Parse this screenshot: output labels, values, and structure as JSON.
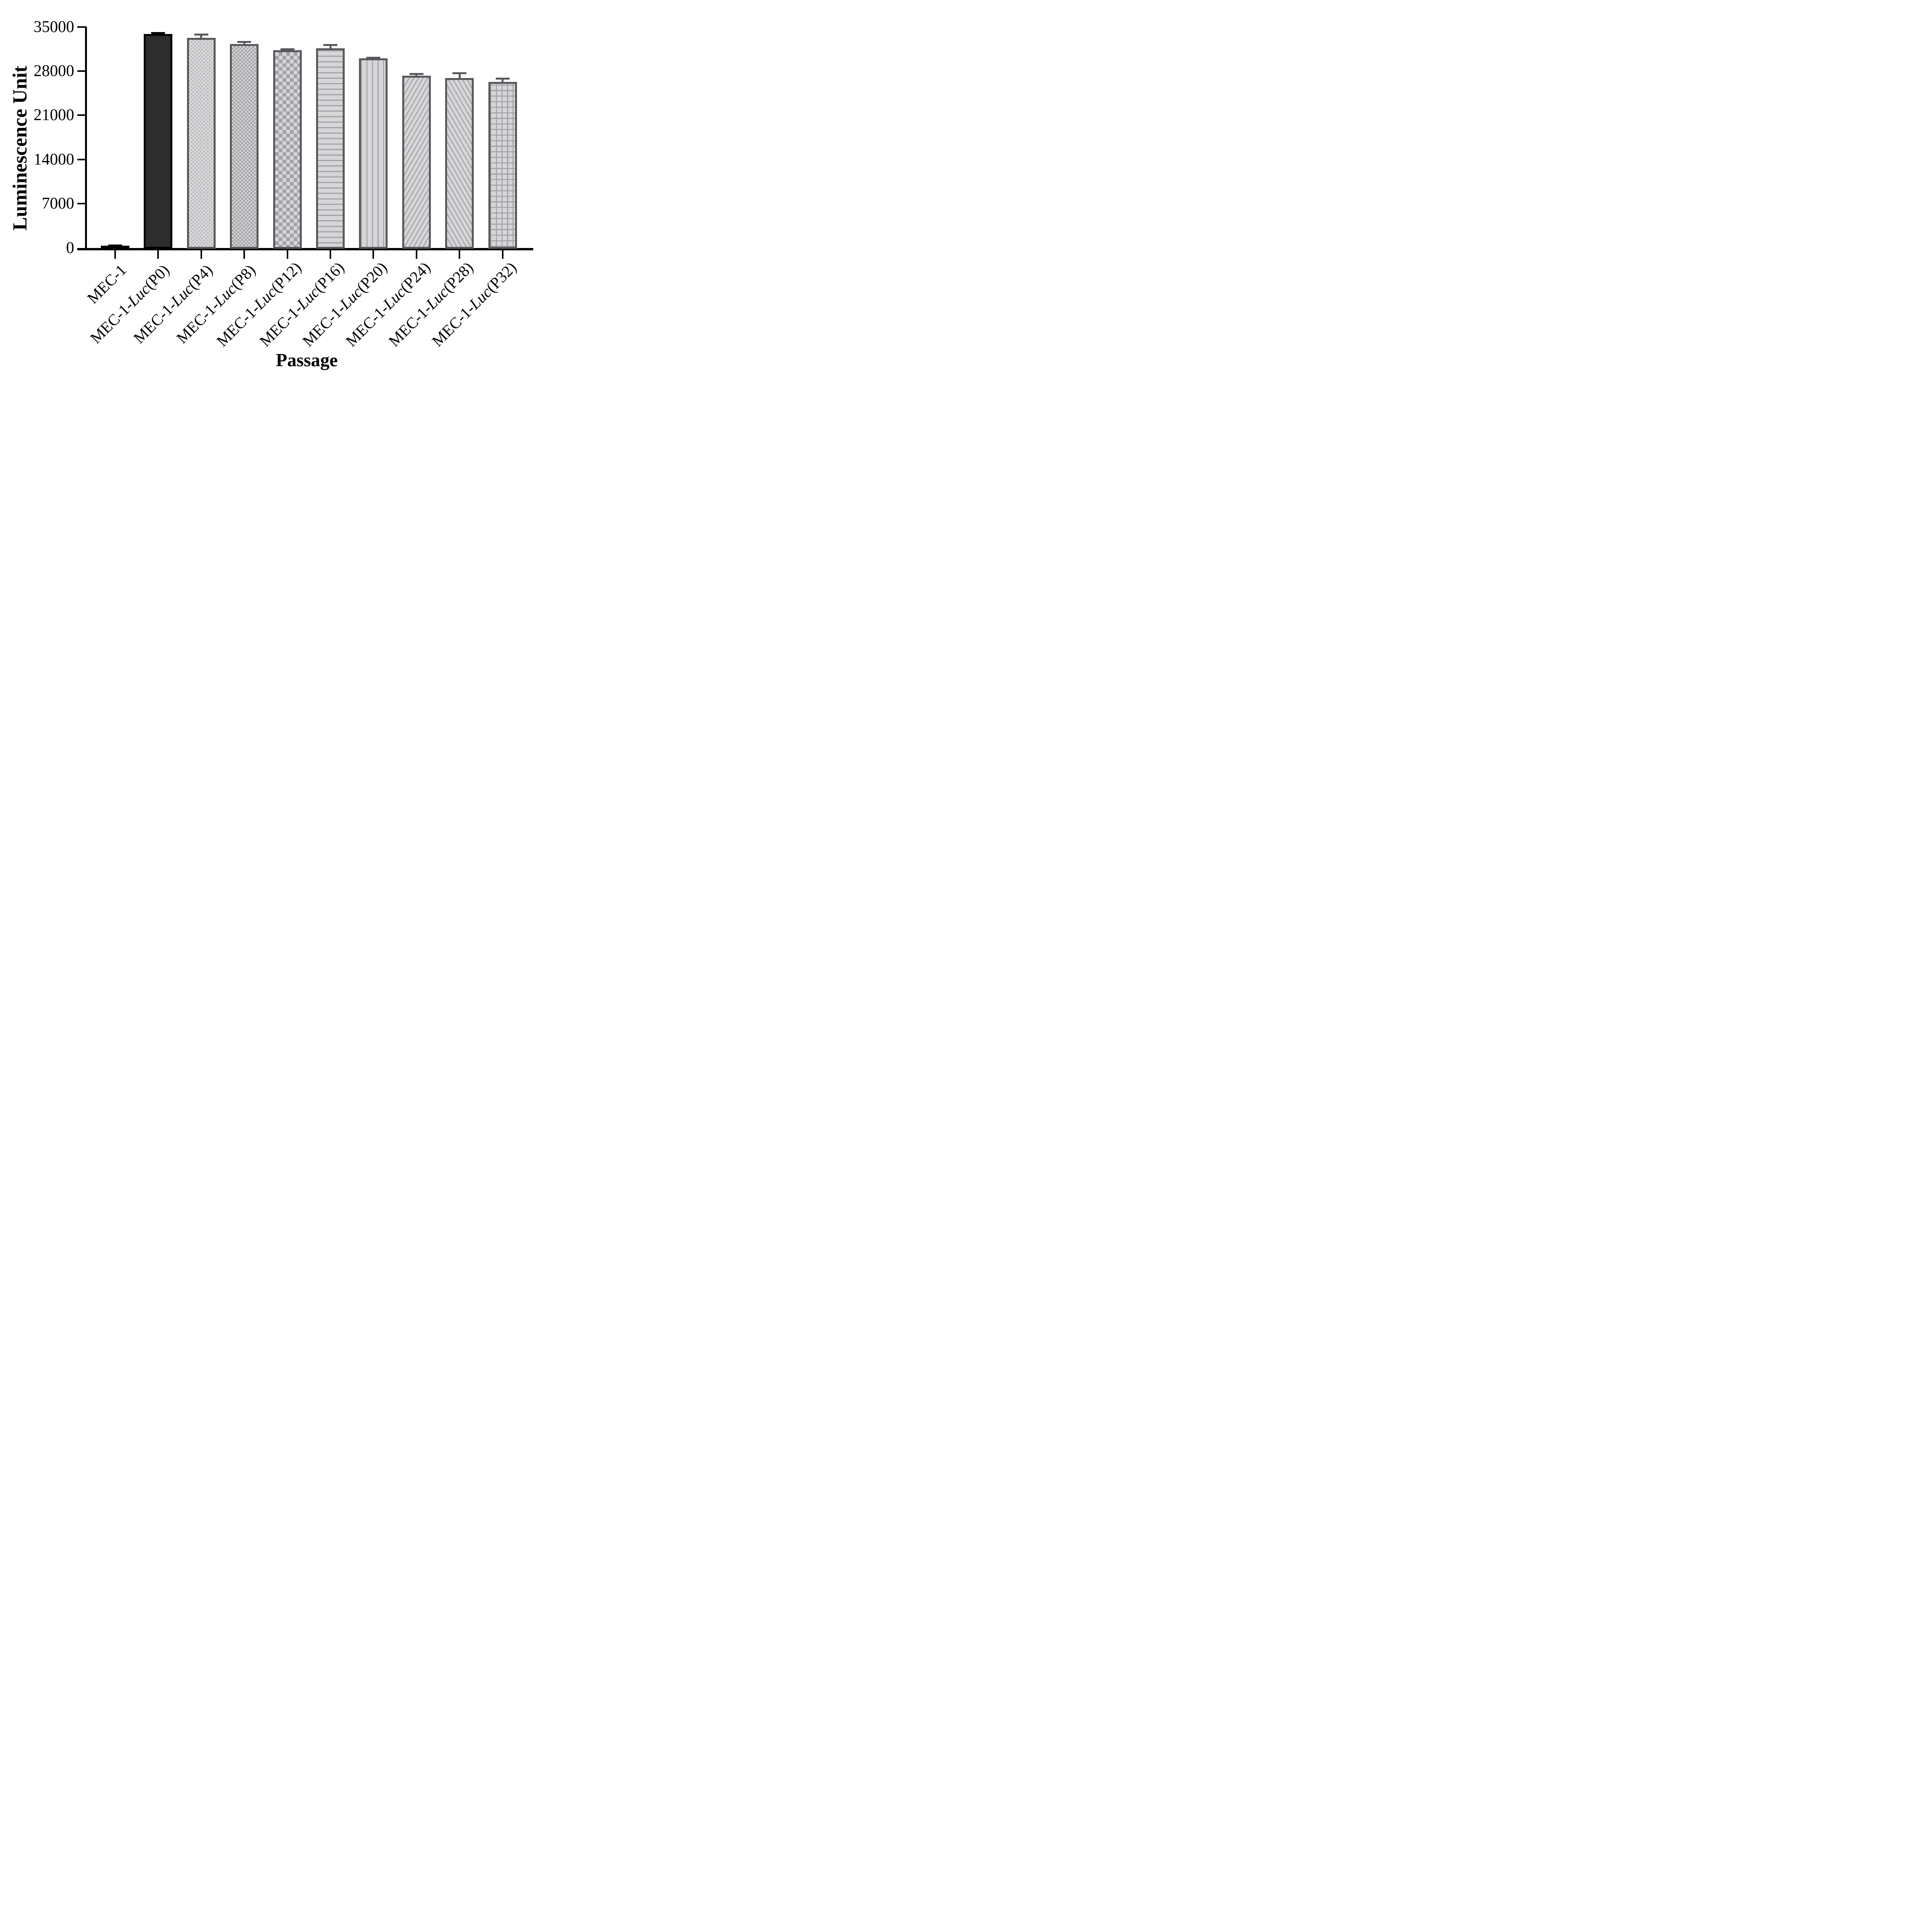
{
  "figure": {
    "background": "#ffffff",
    "axis_color": "#000000",
    "gray_border_color": "#58585c",
    "pattern_light": "#d6d6d8",
    "pattern_dark": "#a2a2a6",
    "black_bar_fill": "#2d2d2d"
  },
  "chart_data": {
    "type": "bar",
    "title": "",
    "xlabel": "Passage",
    "ylabel": "Luminescence Unit",
    "ylim": [
      0,
      35000
    ],
    "yticks": [
      0,
      7000,
      14000,
      21000,
      28000,
      35000
    ],
    "grid": false,
    "legend": "none",
    "error_bars": "upper only, stem with cap",
    "categories": [
      "MEC-1",
      "MEC-1-Luc(P0)",
      "MEC-1-Luc(P4)",
      "MEC-1-Luc(P8)",
      "MEC-1-Luc(P12)",
      "MEC-1-Luc(P16)",
      "MEC-1-Luc(P20)",
      "MEC-1-Luc(P24)",
      "MEC-1-Luc(P28)",
      "MEC-1-Luc(P32)"
    ],
    "values": [
      350,
      33900,
      33300,
      32300,
      31300,
      31600,
      30000,
      27250,
      26900,
      26300
    ],
    "errors_sd_upper": [
      200,
      280,
      650,
      500,
      350,
      700,
      250,
      480,
      900,
      650
    ],
    "bar_patterns": [
      "solid-black",
      "solid-dark",
      "dots",
      "checker-fine",
      "checker-coarse",
      "horizontal-stripes",
      "vertical-stripes",
      "diagonal-up",
      "diagonal-down",
      "grid"
    ],
    "bar_border_colors": [
      "#000000",
      "#000000",
      "#58585c",
      "#58585c",
      "#58585c",
      "#58585c",
      "#58585c",
      "#58585c",
      "#58585c",
      "#58585c"
    ],
    "error_bar_colors": [
      "#000000",
      "#000000",
      "#58585c",
      "#58585c",
      "#58585c",
      "#58585c",
      "#58585c",
      "#58585c",
      "#58585c",
      "#58585c"
    ],
    "x_tick_label_italic_substring": "Luc"
  }
}
